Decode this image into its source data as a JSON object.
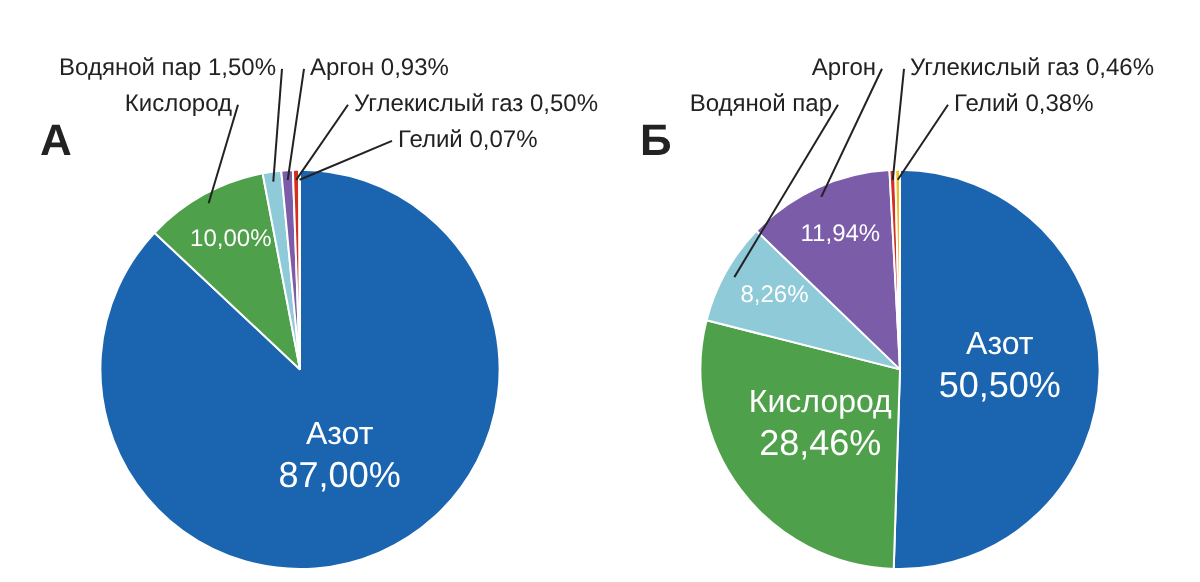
{
  "chart_data": [
    {
      "type": "pie",
      "title": "А",
      "categories": [
        "Азот",
        "Кислород",
        "Водяной пар",
        "Аргон",
        "Углекислый газ",
        "Гелий"
      ],
      "values": [
        87.0,
        10.0,
        1.5,
        0.93,
        0.5,
        0.07
      ],
      "colors": [
        "#1a64b0",
        "#4fa04a",
        "#8ecad8",
        "#7a5ca8",
        "#d03020",
        "#f0c020"
      ],
      "value_labels": [
        "87,00%",
        "10,00%",
        "1,50%",
        "0,93%",
        "0,50%",
        "0,07%"
      ]
    },
    {
      "type": "pie",
      "title": "Б",
      "categories": [
        "Азот",
        "Кислород",
        "Водяной пар",
        "Аргон",
        "Углекислый газ",
        "Гелий"
      ],
      "values": [
        50.5,
        28.46,
        8.26,
        11.94,
        0.46,
        0.38
      ],
      "colors": [
        "#1a64b0",
        "#4fa04a",
        "#8ecad8",
        "#7a5ca8",
        "#d03020",
        "#f0c020"
      ],
      "value_labels": [
        "50,50%",
        "28,46%",
        "8,26%",
        "11,94%",
        "0,46%",
        "0,38%"
      ]
    }
  ]
}
